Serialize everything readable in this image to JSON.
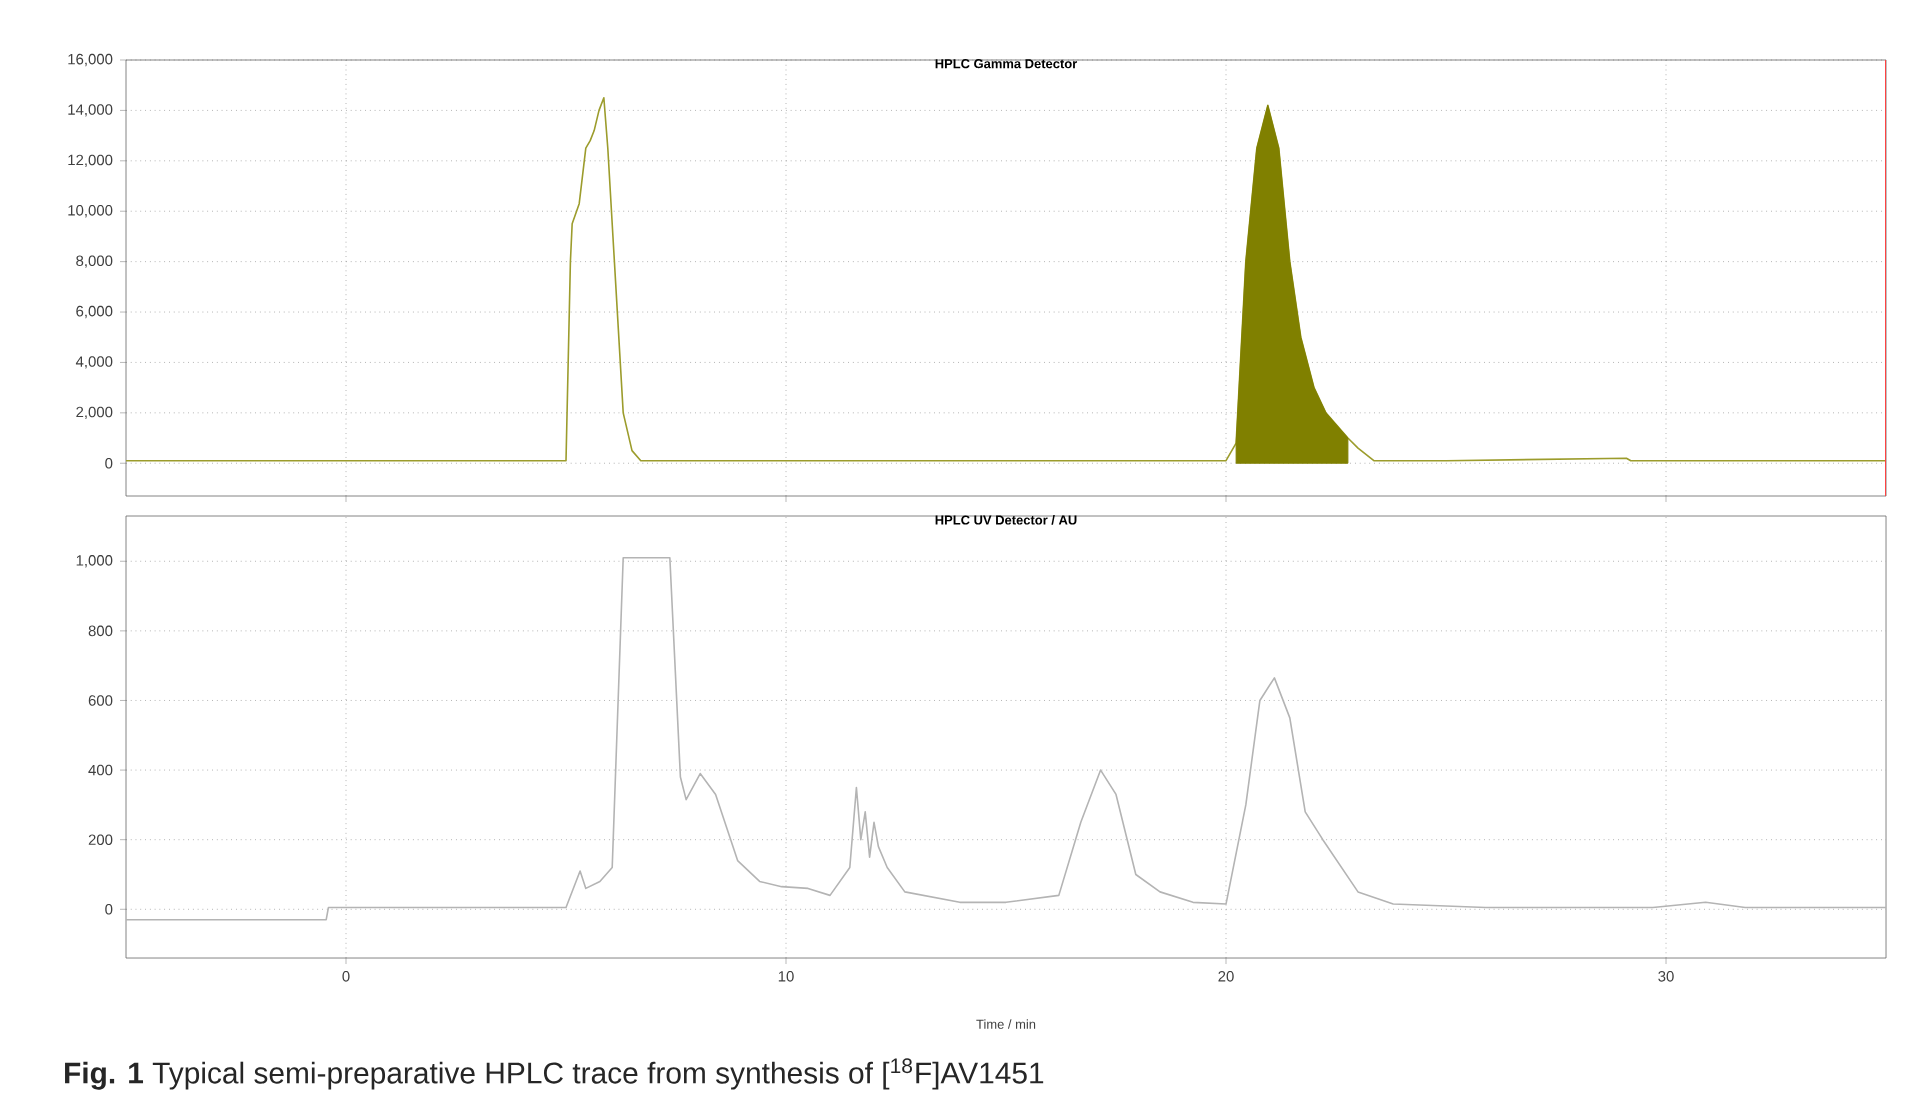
{
  "chart_data": [
    {
      "type": "line",
      "title": "HPLC Gamma Detector",
      "xlim": [
        -5,
        35
      ],
      "ylim": [
        -1300,
        16000
      ],
      "xticks": [
        0,
        10,
        20,
        30
      ],
      "yticks": [
        0,
        {
          "value": 2000,
          "label": "2,000"
        },
        {
          "value": 4000,
          "label": "4,000"
        },
        {
          "value": 6000,
          "label": "6,000"
        },
        {
          "value": 8000,
          "label": "8,000"
        },
        {
          "value": 10000,
          "label": "10,000"
        },
        {
          "value": 12000,
          "label": "12,000"
        },
        {
          "value": 14000,
          "label": "14,000"
        },
        {
          "value": 16000,
          "label": "16,000"
        }
      ],
      "tick_labels": "y",
      "grid": true,
      "series": [
        {
          "type": "line",
          "color": "#9c9c2c",
          "x": [
            -5,
            0,
            2,
            3.5,
            5.0,
            5.1,
            5.14,
            5.3,
            5.45,
            5.55,
            5.64,
            5.75,
            5.86,
            5.95,
            6.1,
            6.3,
            6.5,
            6.7,
            10,
            15,
            20.0,
            20.23,
            20.45,
            20.7,
            20.95,
            21.2,
            21.45,
            21.7,
            22.0,
            22.27,
            22.77,
            23.0,
            23.36,
            25,
            29.1,
            29.2,
            35
          ],
          "values": [
            100,
            100,
            100,
            100,
            100,
            8000,
            9500,
            10300,
            12500,
            12800,
            13200,
            14000,
            14500,
            12500,
            8000,
            2000,
            500,
            100,
            100,
            100,
            100,
            800,
            8000,
            12500,
            14200,
            12500,
            8000,
            5000,
            3000,
            2000,
            1000,
            600,
            100,
            100,
            200,
            100,
            100
          ]
        },
        {
          "type": "area",
          "color": "#808000",
          "x": [
            20.23,
            20.45,
            20.7,
            20.95,
            21.2,
            21.45,
            21.7,
            22.0,
            22.27,
            22.77
          ],
          "values": [
            800,
            8000,
            12500,
            14200,
            12500,
            8000,
            5000,
            3000,
            2000,
            1000
          ]
        }
      ],
      "ref_lines": [
        {
          "axis": "x",
          "value": 35,
          "color": "#ff4040"
        }
      ]
    },
    {
      "type": "line",
      "title": "HPLC UV Detector / AU",
      "xlabel": "Time / min",
      "xlim": [
        -5,
        35
      ],
      "ylim": [
        -140,
        1130
      ],
      "xticks": [
        0,
        10,
        20,
        30
      ],
      "yticks": [
        0,
        200,
        400,
        600,
        800,
        {
          "value": 1000,
          "label": "1,000"
        }
      ],
      "grid": true,
      "annotations": [
        "**Fig. 1** Typical semi-preparative HPLC trace from synthesis of [$^{18}$F]AV1451"
      ],
      "series": [
        {
          "color": "#b4b4b4",
          "x": [
            -5,
            -0.45,
            -0.4,
            5.0,
            5.32,
            5.45,
            5.77,
            6.05,
            6.3,
            7.36,
            7.6,
            7.73,
            8.05,
            8.4,
            8.9,
            9.4,
            9.9,
            10.5,
            11.0,
            11.45,
            11.6,
            11.7,
            11.8,
            11.9,
            12.0,
            12.1,
            12.3,
            12.7,
            13.95,
            15.0,
            16.2,
            16.7,
            17.15,
            17.5,
            17.95,
            18.5,
            19.25,
            20.0,
            20.45,
            20.77,
            21.1,
            21.45,
            21.8,
            22.2,
            23.0,
            23.8,
            25.9,
            29.7,
            30.9,
            31.8,
            33.5,
            35
          ],
          "values": [
            -30,
            -30,
            5,
            5,
            110,
            60,
            80,
            120,
            1010,
            1010,
            380,
            315,
            390,
            330,
            140,
            80,
            65,
            60,
            40,
            120,
            350,
            200,
            280,
            150,
            250,
            180,
            120,
            50,
            20,
            20,
            40,
            250,
            400,
            330,
            100,
            50,
            20,
            15,
            300,
            600,
            665,
            550,
            280,
            200,
            50,
            15,
            5,
            5,
            20,
            5,
            5,
            5
          ]
        }
      ]
    }
  ]
}
